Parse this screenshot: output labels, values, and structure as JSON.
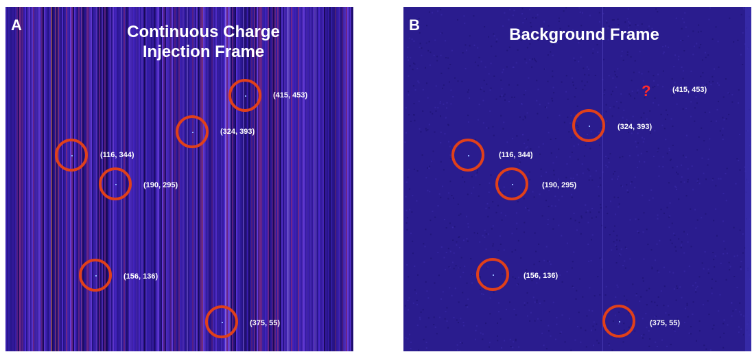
{
  "panels": [
    {
      "letter": "A",
      "title_line1": "Continuous Charge",
      "title_line2": "Injection Frame",
      "labels": [
        "(415, 453)",
        "(324, 393)",
        "(116, 344)",
        "(190, 295)",
        "(156, 136)",
        "(375, 55)"
      ]
    },
    {
      "letter": "B",
      "title": "Background Frame",
      "unknown_mark": "?",
      "labels": [
        "(415, 453)",
        "(324, 393)",
        "(116, 344)",
        "(190, 295)",
        "(156, 136)",
        "(375, 55)"
      ]
    }
  ],
  "colors": {
    "background_a": "#23107a",
    "background_b": "#2a1c8e",
    "marker": "#e0401a",
    "unknown_mark": "#ff2a2a",
    "text": "#ffffff"
  }
}
